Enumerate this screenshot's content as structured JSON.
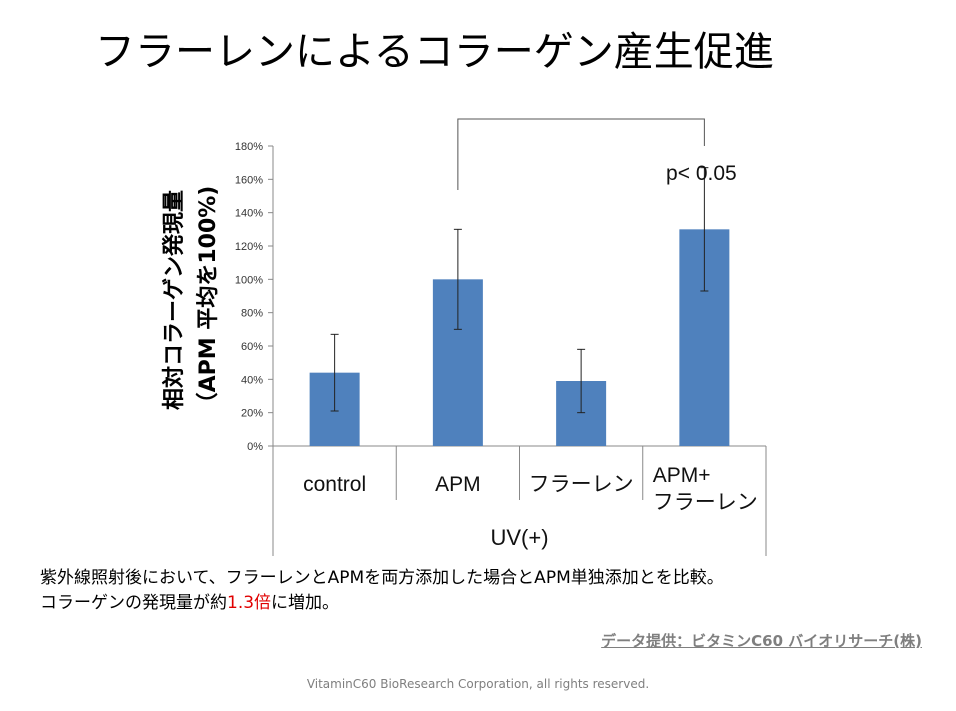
{
  "slide": {
    "title": "フラーレンによるコラーゲン産生促進",
    "caption_line1": "紫外線照射後において、フラーレンとAPMを両方添加した場合とAPM単独添加とを比較。",
    "caption_line2_pre": "コラーゲンの発現量が約",
    "caption_line2_highlight": "1.3倍",
    "caption_line2_post": "に増加。",
    "source": "データ提供：ビタミンC60 バイオリサーチ(株)",
    "copyright": "VitaminC60 BioResearch Corporation, all rights reserved."
  },
  "chart_data": {
    "type": "bar",
    "categories": [
      [
        "control"
      ],
      [
        "APM"
      ],
      [
        "フラーレン"
      ],
      [
        "APM+",
        "フラーレン"
      ]
    ],
    "values": [
      44,
      100,
      39,
      130
    ],
    "error_low": [
      21,
      70,
      20,
      93
    ],
    "error_high": [
      67,
      130,
      58,
      167
    ],
    "yticks": [
      "0%",
      "20%",
      "40%",
      "60%",
      "80%",
      "100%",
      "120%",
      "140%",
      "160%",
      "180%"
    ],
    "ylim": [
      0,
      180
    ],
    "ylabel_line1": "相対コラーゲン発現量",
    "ylabel_line2": "（APM 平均を100%)",
    "group_label": "UV(+)",
    "significance": {
      "from": 1,
      "to": 3,
      "label": "p< 0.05"
    },
    "bar_color": "#4f81bd",
    "grid": false,
    "legend": "none"
  }
}
